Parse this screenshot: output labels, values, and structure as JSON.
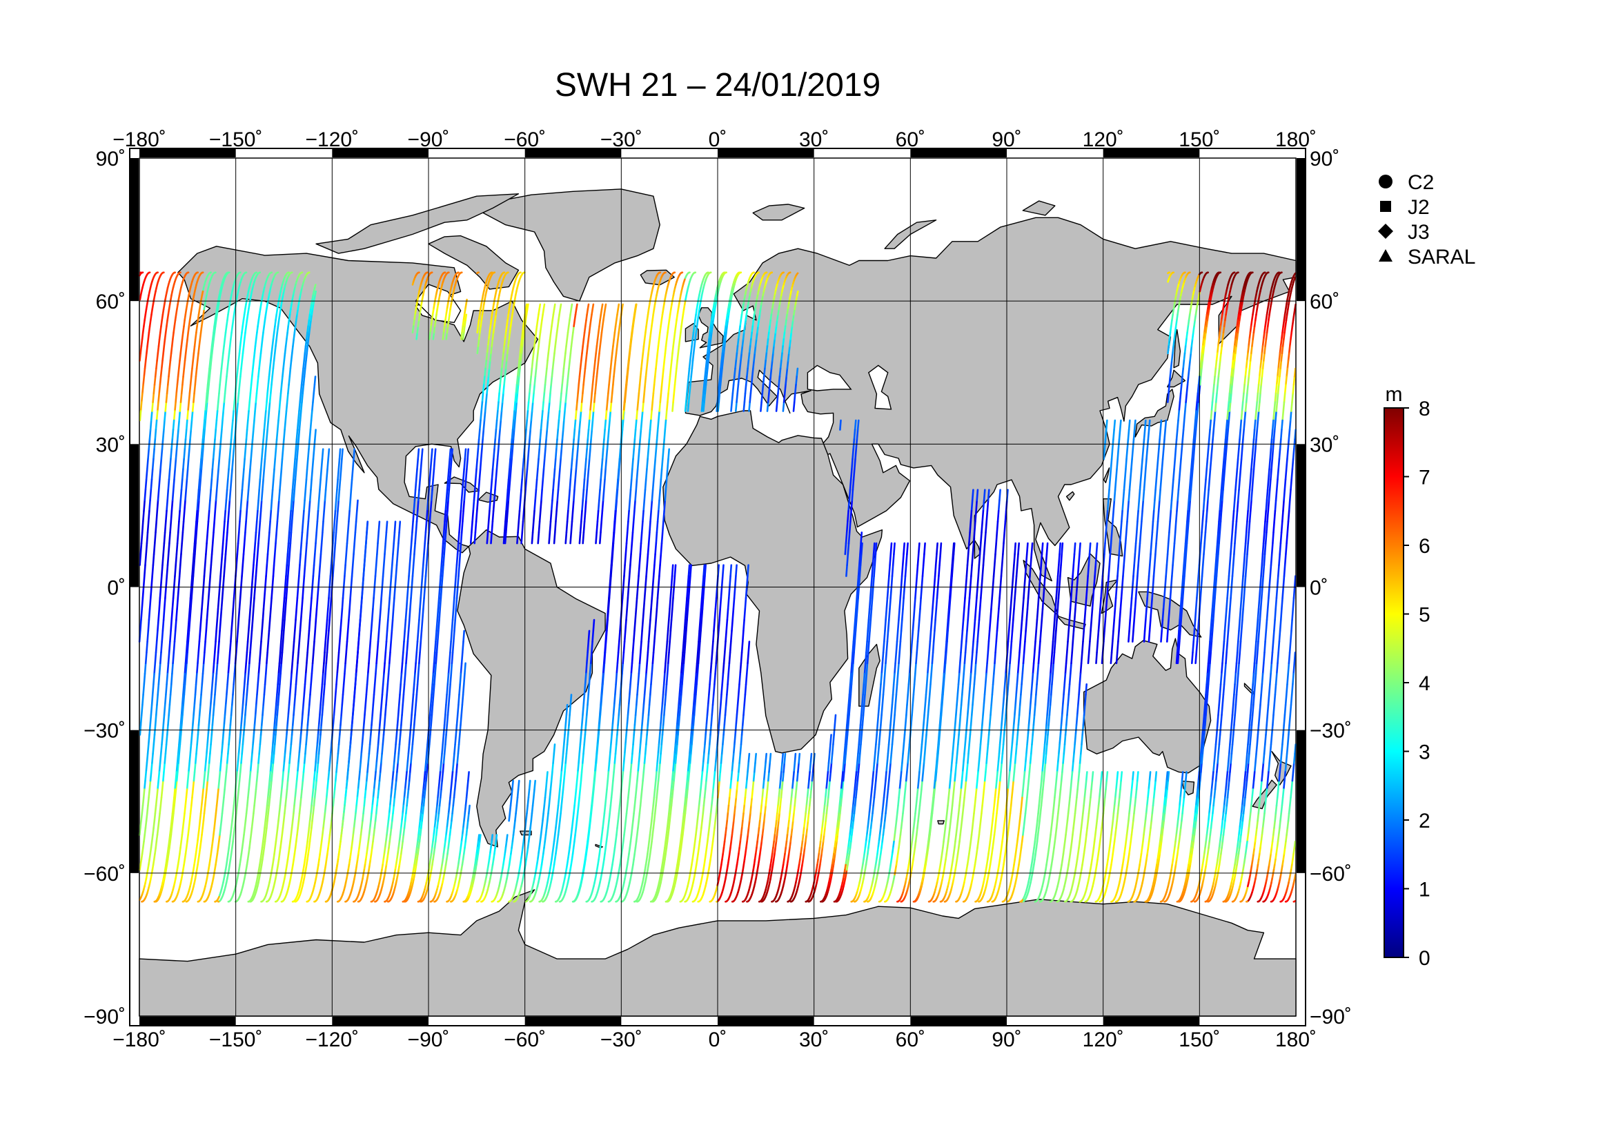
{
  "title": "SWH 21 – 24/01/2019",
  "map": {
    "lon_range": [
      -180,
      180
    ],
    "lat_range": [
      -90,
      90
    ],
    "grid": true,
    "land_color": "#bebebe",
    "x_tick_values": [
      -180,
      -150,
      -120,
      -90,
      -60,
      -30,
      0,
      30,
      60,
      90,
      120,
      150,
      180
    ],
    "x_tick_labels": [
      "−180˚",
      "−150˚",
      "−120˚",
      "−90˚",
      "−60˚",
      "−30˚",
      "0˚",
      "30˚",
      "60˚",
      "90˚",
      "120˚",
      "150˚",
      "180˚"
    ],
    "y_tick_values": [
      90,
      60,
      30,
      0,
      -30,
      -60,
      -90
    ],
    "y_tick_labels": [
      "90˚",
      "60˚",
      "30˚",
      "0˚",
      "−30˚",
      "−60˚",
      "−90˚"
    ]
  },
  "legend": {
    "placement": "top-right",
    "items": [
      {
        "label": "C2",
        "symbol": "circle-icon"
      },
      {
        "label": "J2",
        "symbol": "square-icon"
      },
      {
        "label": "J3",
        "symbol": "diamond-icon"
      },
      {
        "label": "SARAL",
        "symbol": "triangle-icon"
      }
    ]
  },
  "colorbar": {
    "unit": "m",
    "min": 0,
    "max": 8,
    "ticks": [
      "0",
      "1",
      "2",
      "3",
      "4",
      "5",
      "6",
      "7",
      "8"
    ],
    "colors": [
      "#00007f",
      "#0000ff",
      "#007fff",
      "#00ffff",
      "#7fff7f",
      "#ffff00",
      "#ff7f00",
      "#ff0000",
      "#7f0000"
    ]
  }
}
